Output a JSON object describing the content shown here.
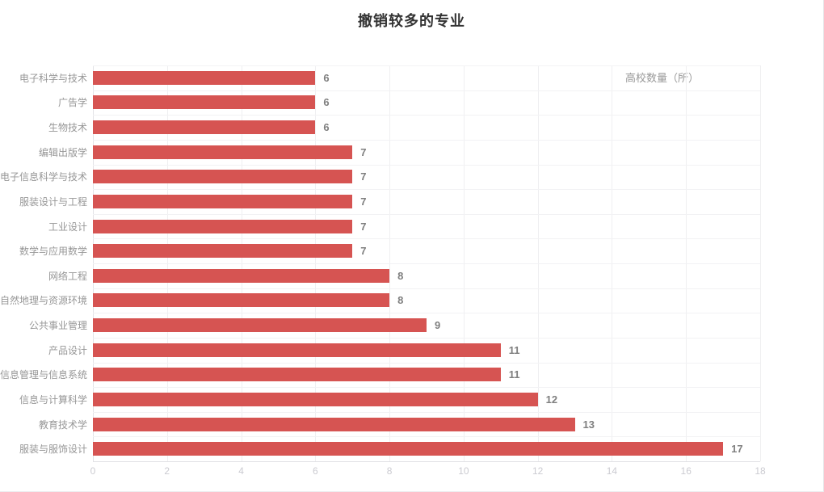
{
  "chart_data": {
    "type": "bar",
    "orientation": "horizontal",
    "title": "撤销较多的专业",
    "legend": "高校数量（所）",
    "legend_position": "top-right",
    "categories": [
      "电子科学与技术",
      "广告学",
      "生物技术",
      "编辑出版学",
      "电子信息科学与技术",
      "服装设计与工程",
      "工业设计",
      "数学与应用数学",
      "网络工程",
      "自然地理与资源环境",
      "公共事业管理",
      "产品设计",
      "信息管理与信息系统",
      "信息与计算科学",
      "教育技术学",
      "服装与服饰设计"
    ],
    "values": [
      6,
      6,
      6,
      7,
      7,
      7,
      7,
      7,
      8,
      8,
      9,
      11,
      11,
      12,
      13,
      17
    ],
    "xlim": [
      0,
      18
    ],
    "x_ticks": [
      0,
      2,
      4,
      6,
      8,
      10,
      12,
      14,
      16,
      18
    ],
    "grid": true,
    "colors": {
      "bar": "#d65452",
      "value_label": "#7f7f7f",
      "category_label": "#979797",
      "tick_label": "#cbcbd1",
      "title": "#333333",
      "grid_line": "#efeff1"
    }
  }
}
